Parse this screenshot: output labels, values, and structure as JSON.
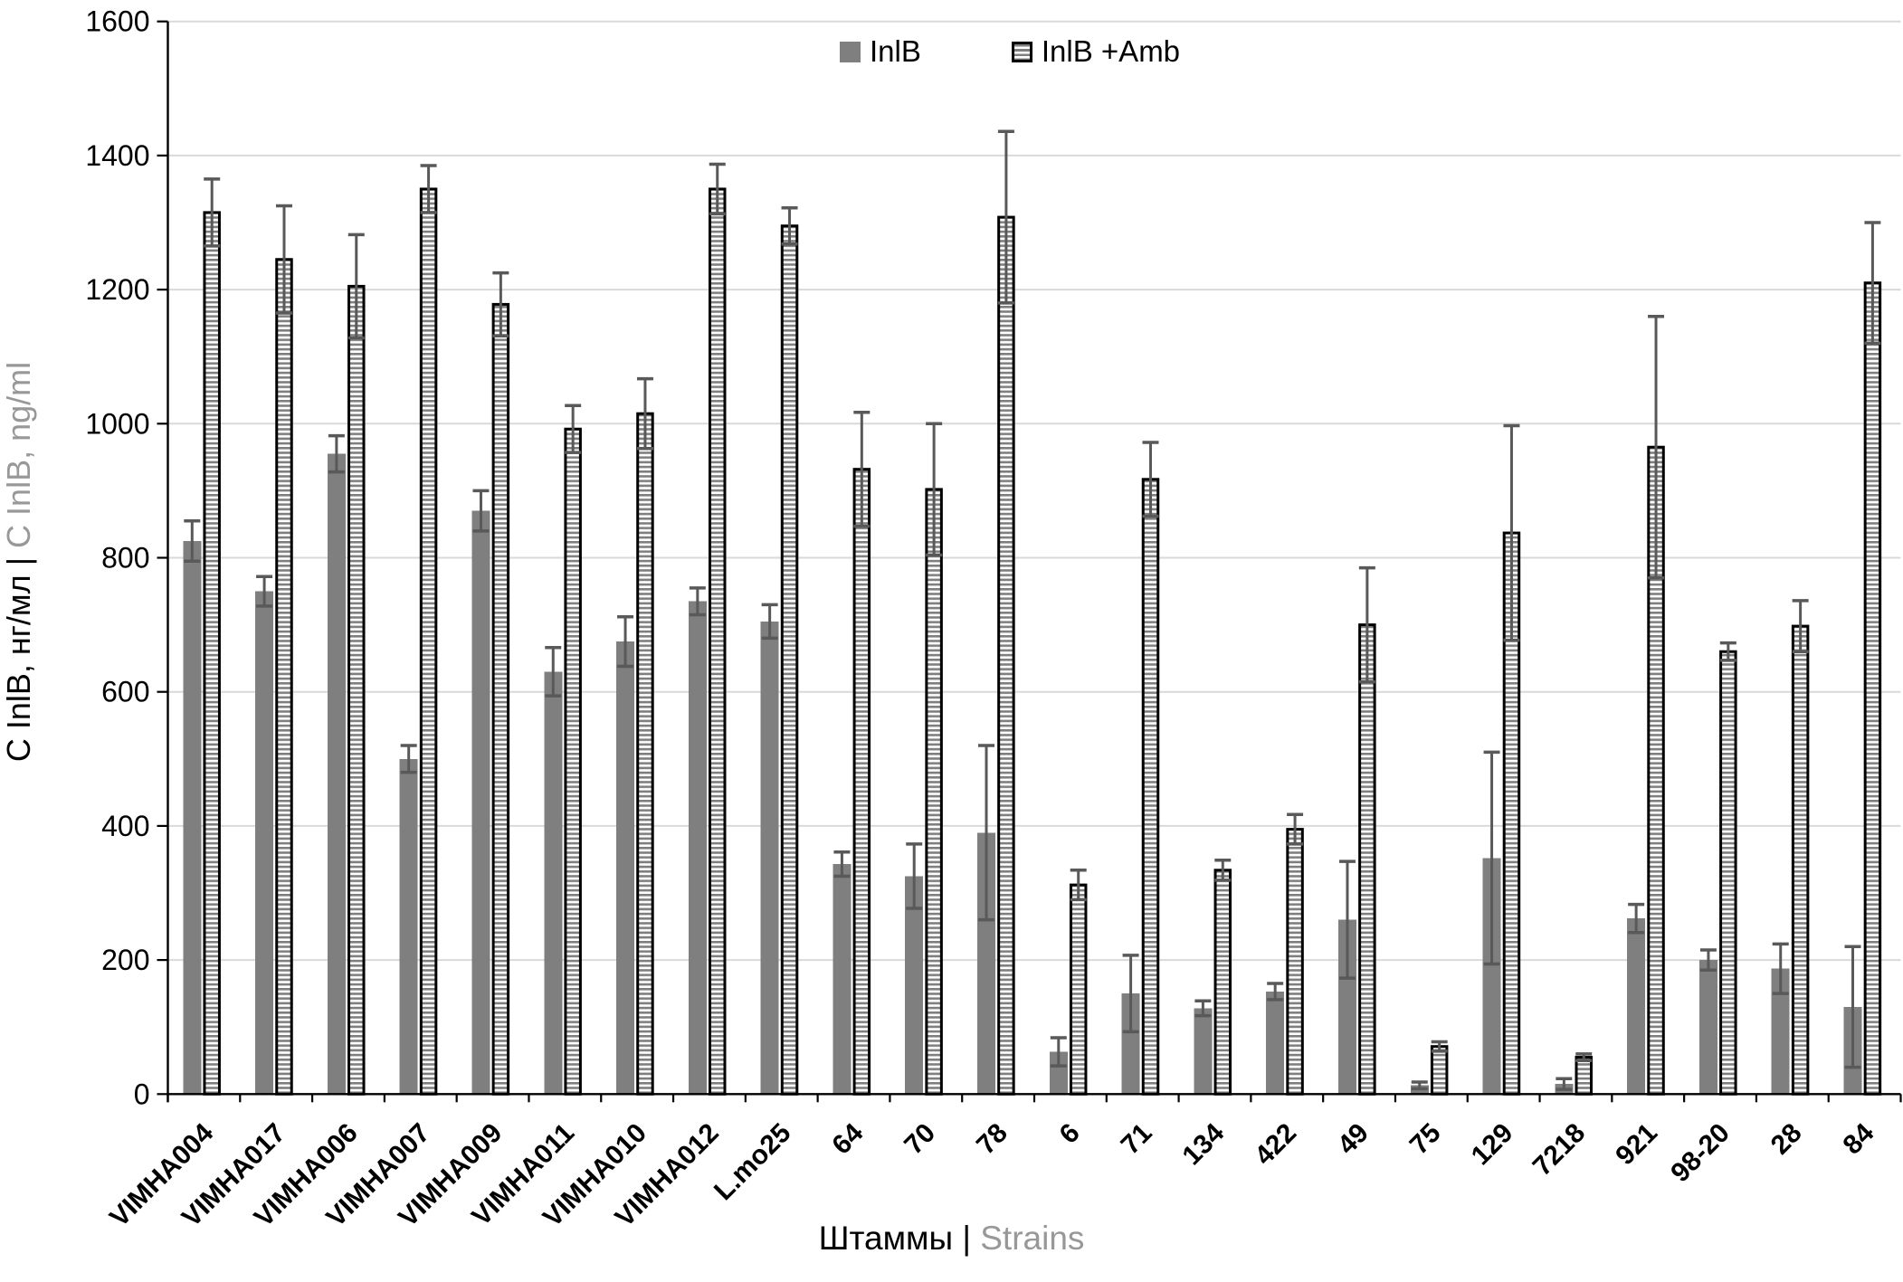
{
  "legend": {
    "items": [
      {
        "label": "InlB",
        "swatch": "solid-gray"
      },
      {
        "label": "InlB +Amb",
        "swatch": "horizontal-stripes"
      }
    ]
  },
  "axes": {
    "y_title_primary": "С InlB, нг/мл",
    "y_title_separator": " | ",
    "y_title_secondary": "C InlB, ng/ml",
    "x_title_primary": "Штаммы",
    "x_title_separator": " | ",
    "x_title_secondary": "Strains"
  },
  "chart_data": {
    "type": "bar",
    "title": "",
    "xlabel": "Штаммы | Strains",
    "ylabel": "С InlB, нг/мл | C InlB, ng/ml",
    "ylim": [
      0,
      1600
    ],
    "ytick_step": 200,
    "grid": true,
    "legend_position": "top-center",
    "categories": [
      "VIMHA004",
      "VIMHA017",
      "VIMHA006",
      "VIMHA007",
      "VIMHA009",
      "VIMHA011",
      "VIMHA010",
      "VIMHA012",
      "L.mo25",
      "64",
      "70",
      "78",
      "6",
      "71",
      "134",
      "422",
      "49",
      "75",
      "129",
      "7218",
      "921",
      "98-20",
      "28",
      "84"
    ],
    "series": [
      {
        "name": "InlB",
        "style": "solid",
        "color": "#7f7f7f",
        "values": [
          825,
          750,
          955,
          500,
          870,
          630,
          675,
          735,
          705,
          343,
          325,
          390,
          63,
          150,
          128,
          153,
          260,
          13,
          352,
          15,
          262,
          200,
          187,
          130
        ],
        "errors": [
          30,
          22,
          27,
          20,
          30,
          36,
          37,
          20,
          25,
          18,
          48,
          130,
          21,
          57,
          11,
          12,
          87,
          5,
          158,
          8,
          21,
          15,
          37,
          90
        ]
      },
      {
        "name": "InlB +Amb",
        "style": "horizontal-stripes",
        "fill": "#ffffff",
        "stripe_color": "#7f7f7f",
        "border_color": "#000000",
        "values": [
          1315,
          1245,
          1205,
          1350,
          1178,
          992,
          1015,
          1350,
          1295,
          932,
          902,
          1308,
          312,
          917,
          334,
          395,
          700,
          71,
          837,
          55,
          965,
          660,
          698,
          1210
        ],
        "errors": [
          50,
          80,
          77,
          35,
          47,
          35,
          52,
          37,
          27,
          85,
          98,
          128,
          22,
          55,
          15,
          22,
          85,
          7,
          160,
          5,
          195,
          13,
          38,
          90
        ]
      }
    ],
    "error_bar_color": "#595959",
    "gridline_color": "#d9d9d9",
    "axis_color": "#000000"
  }
}
